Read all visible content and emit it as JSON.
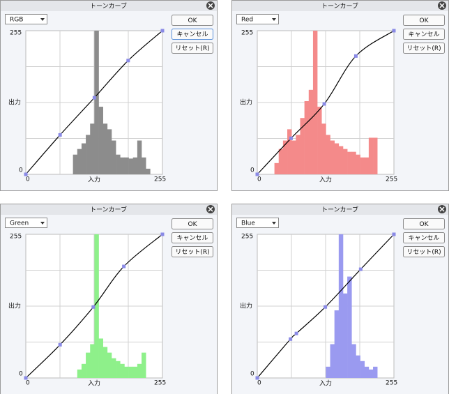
{
  "panels": [
    {
      "title": "トーンカーブ",
      "channel": "RGB",
      "buttons": [
        "OK",
        "キャンセル",
        "リセット(R)"
      ],
      "y_axis_label": "出力",
      "x_axis_label": "入力",
      "xlim": [
        0,
        255
      ],
      "ylim": [
        0,
        255
      ],
      "points": [
        [
          0,
          0
        ],
        [
          64,
          70
        ],
        [
          128,
          136
        ],
        [
          191,
          202
        ],
        [
          255,
          255
        ]
      ],
      "histogram_color": "#8c8c8c",
      "histogram": [
        0,
        0,
        0,
        0,
        0,
        0,
        0,
        0,
        0,
        0,
        0,
        35,
        45,
        55,
        70,
        90,
        255,
        120,
        90,
        80,
        60,
        35,
        30,
        30,
        28,
        30,
        60,
        30,
        10,
        0,
        0,
        0
      ]
    },
    {
      "title": "トーンカーブ",
      "channel": "Red",
      "buttons": [
        "OK",
        "キャンセル",
        "リセット(R)"
      ],
      "y_axis_label": "出力",
      "x_axis_label": "入力",
      "xlim": [
        0,
        255
      ],
      "ylim": [
        0,
        255
      ],
      "points": [
        [
          0,
          0
        ],
        [
          63,
          64
        ],
        [
          125,
          125
        ],
        [
          184,
          210
        ],
        [
          255,
          255
        ]
      ],
      "histogram_color": "#f48a8a",
      "histogram": [
        0,
        0,
        0,
        0,
        20,
        45,
        60,
        80,
        60,
        70,
        100,
        130,
        150,
        255,
        120,
        90,
        70,
        60,
        55,
        50,
        45,
        40,
        40,
        35,
        30,
        30,
        65,
        65,
        0,
        0,
        0,
        0
      ]
    },
    {
      "title": "トーンカーブ",
      "channel": "Green",
      "buttons": [
        "OK",
        "キャンセル",
        "リセット(R)"
      ],
      "y_axis_label": "出力",
      "x_axis_label": "入力",
      "xlim": [
        0,
        255
      ],
      "ylim": [
        0,
        255
      ],
      "points": [
        [
          0,
          0
        ],
        [
          64,
          59
        ],
        [
          126,
          126
        ],
        [
          183,
          198
        ],
        [
          255,
          255
        ]
      ],
      "histogram_color": "#8ef08a",
      "histogram": [
        0,
        0,
        0,
        0,
        0,
        0,
        0,
        0,
        0,
        0,
        0,
        0,
        15,
        25,
        45,
        60,
        255,
        70,
        55,
        45,
        35,
        30,
        25,
        20,
        20,
        20,
        25,
        45,
        0,
        0,
        0,
        0
      ]
    },
    {
      "title": "トーンカーブ",
      "channel": "Blue",
      "buttons": [
        "OK",
        "キャンセル",
        "リセット(R)"
      ],
      "y_axis_label": "出力",
      "x_axis_label": "入力",
      "xlim": [
        0,
        255
      ],
      "ylim": [
        0,
        255
      ],
      "points": [
        [
          0,
          0
        ],
        [
          62,
          69
        ],
        [
          73,
          79
        ],
        [
          127,
          126
        ],
        [
          193,
          193
        ],
        [
          255,
          255
        ]
      ],
      "histogram_color": "#9a9af0",
      "histogram": [
        0,
        0,
        0,
        0,
        0,
        0,
        0,
        0,
        0,
        0,
        0,
        0,
        0,
        0,
        0,
        0,
        20,
        60,
        120,
        255,
        150,
        180,
        60,
        40,
        30,
        20,
        15,
        20,
        0,
        0,
        0,
        0
      ]
    }
  ]
}
